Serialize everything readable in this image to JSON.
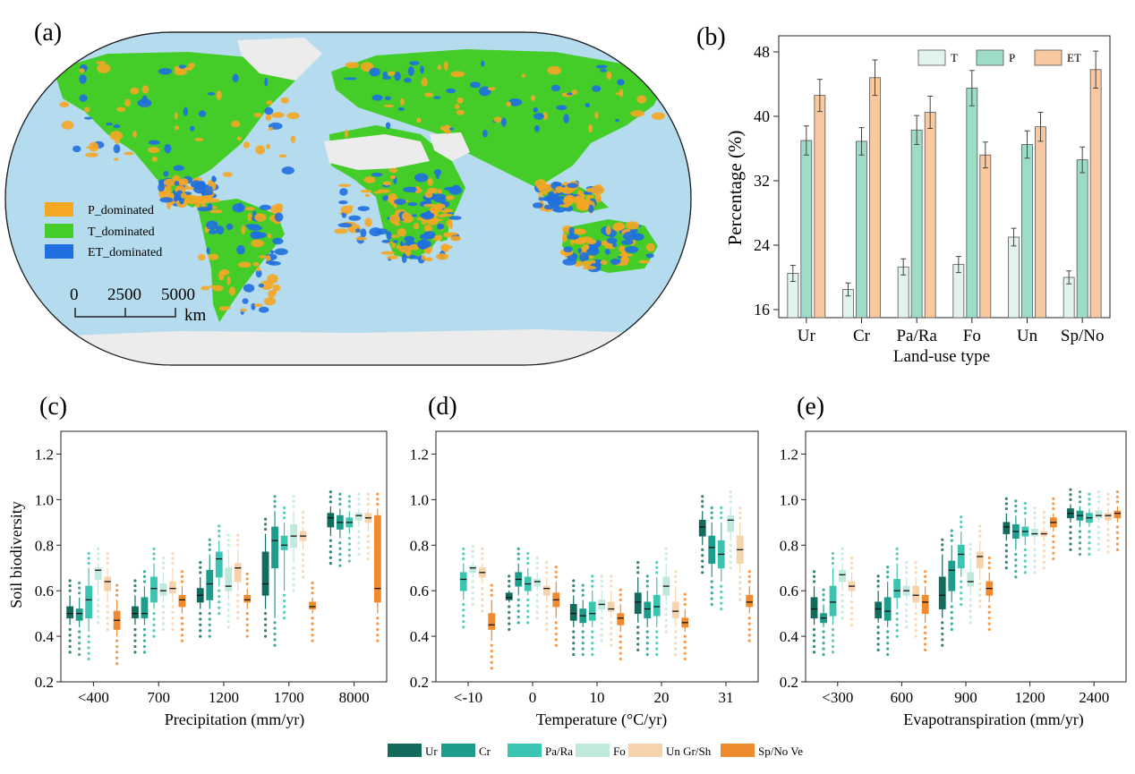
{
  "colors": {
    "p_dom": "#f5a623",
    "t_dom": "#44cc28",
    "et_dom": "#1f6fe0",
    "ocean": "#b5dcee",
    "land_gray": "#ececec",
    "bar_T": "#e2f3ee",
    "bar_P": "#9ddcc6",
    "bar_ET": "#f8c9a0",
    "groups": [
      "#136b5e",
      "#1e9c8c",
      "#3cc4b3",
      "#bfe9dd",
      "#f6d3ad",
      "#f08a2e"
    ]
  },
  "map": {
    "panel_label": "(a)",
    "legend": [
      "P_dominated",
      "T_dominated",
      "ET_dominated"
    ],
    "scale_ticks": [
      "0",
      "2500",
      "5000"
    ],
    "scale_unit": "km"
  },
  "chart_data": [
    {
      "id": "b",
      "panel_label": "(b)",
      "type": "bar",
      "xlabel": "Land-use type",
      "ylabel": "Percentage (%)",
      "ylim": [
        15,
        50
      ],
      "yticks": [
        "16",
        "24",
        "32",
        "40",
        "48"
      ],
      "categories": [
        "Ur",
        "Cr",
        "Pa/Ra",
        "Fo",
        "Un",
        "Sp/No"
      ],
      "series": [
        {
          "name": "T",
          "values": [
            20.5,
            18.5,
            21.3,
            21.6,
            25.0,
            20.0
          ],
          "errors": [
            1.0,
            0.8,
            1.0,
            1.0,
            1.1,
            0.8
          ]
        },
        {
          "name": "P",
          "values": [
            37.0,
            36.9,
            38.3,
            43.5,
            36.5,
            34.6
          ],
          "errors": [
            1.8,
            1.7,
            1.8,
            2.2,
            1.7,
            1.6
          ]
        },
        {
          "name": "ET",
          "values": [
            42.6,
            44.8,
            40.5,
            35.2,
            38.7,
            45.8
          ],
          "errors": [
            2.0,
            2.2,
            2.0,
            1.6,
            1.8,
            2.3
          ]
        }
      ],
      "legend_position": "top"
    },
    {
      "id": "c",
      "panel_label": "(c)",
      "type": "box",
      "xlabel": "Precipitation (mm/yr)",
      "ylabel": "Soil biodiversity",
      "ylim": [
        0.2,
        1.3
      ],
      "yticks": [
        "0.2",
        "0.4",
        "0.6",
        "0.8",
        "1.0",
        "1.2"
      ],
      "categories": [
        "<400",
        "700",
        "1200",
        "1700",
        "8000"
      ],
      "groups": [
        "Ur",
        "Cr",
        "Pa/Ra",
        "Fo",
        "Un Gr/Sh",
        "Sp/No Ve"
      ],
      "boxes": [
        [
          [
            0.45,
            0.48,
            0.5,
            0.53,
            0.58
          ],
          [
            0.44,
            0.47,
            0.5,
            0.52,
            0.57
          ],
          [
            0.42,
            0.48,
            0.56,
            0.62,
            0.7
          ],
          [
            0.58,
            0.65,
            0.69,
            0.7,
            0.72
          ],
          [
            0.55,
            0.6,
            0.64,
            0.66,
            0.7
          ],
          [
            0.4,
            0.43,
            0.47,
            0.51,
            0.56
          ]
        ],
        [
          [
            0.45,
            0.48,
            0.5,
            0.53,
            0.58
          ],
          [
            0.45,
            0.48,
            0.5,
            0.57,
            0.62
          ],
          [
            0.52,
            0.55,
            0.61,
            0.66,
            0.72
          ],
          [
            0.55,
            0.58,
            0.6,
            0.63,
            0.68
          ],
          [
            0.55,
            0.59,
            0.61,
            0.64,
            0.7
          ],
          [
            0.5,
            0.53,
            0.56,
            0.58,
            0.62
          ]
        ],
        [
          [
            0.52,
            0.55,
            0.58,
            0.61,
            0.66
          ],
          [
            0.52,
            0.56,
            0.63,
            0.69,
            0.76
          ],
          [
            0.62,
            0.66,
            0.74,
            0.77,
            0.82
          ],
          [
            0.56,
            0.6,
            0.62,
            0.7,
            0.78
          ],
          [
            0.6,
            0.64,
            0.7,
            0.72,
            0.78
          ],
          [
            0.52,
            0.55,
            0.56,
            0.58,
            0.61
          ]
        ],
        [
          [
            0.52,
            0.58,
            0.63,
            0.77,
            0.85
          ],
          [
            0.48,
            0.7,
            0.82,
            0.88,
            0.95
          ],
          [
            0.6,
            0.78,
            0.8,
            0.84,
            0.9
          ],
          [
            0.72,
            0.79,
            0.84,
            0.89,
            0.95
          ],
          [
            0.78,
            0.82,
            0.84,
            0.86,
            0.88
          ],
          [
            0.5,
            0.52,
            0.53,
            0.55,
            0.57
          ]
        ],
        [
          [
            0.84,
            0.88,
            0.92,
            0.94,
            0.97
          ],
          [
            0.83,
            0.87,
            0.9,
            0.93,
            0.96
          ],
          [
            0.85,
            0.88,
            0.9,
            0.92,
            0.95
          ],
          [
            0.88,
            0.91,
            0.93,
            0.94,
            0.96
          ],
          [
            0.86,
            0.9,
            0.92,
            0.94,
            0.96
          ],
          [
            0.5,
            0.55,
            0.61,
            0.93,
            0.96
          ]
        ]
      ]
    },
    {
      "id": "d",
      "panel_label": "(d)",
      "type": "box",
      "xlabel": "Temperature (°C/yr)",
      "ylabel": "",
      "ylim": [
        0.2,
        1.3
      ],
      "yticks": [
        "0.2",
        "0.4",
        "0.6",
        "0.8",
        "1.0",
        "1.2"
      ],
      "categories": [
        "<-10",
        "0",
        "10",
        "20",
        "31"
      ],
      "groups": [
        "Ur",
        "Cr",
        "Pa/Ra",
        "Fo",
        "Un Gr/Sh",
        "Sp/No Ve"
      ],
      "boxes": [
        [
          null,
          null,
          [
            0.56,
            0.6,
            0.65,
            0.68,
            0.72
          ],
          [
            0.66,
            0.68,
            0.7,
            0.71,
            0.73
          ],
          [
            0.63,
            0.66,
            0.68,
            0.7,
            0.72
          ],
          [
            0.38,
            0.43,
            0.45,
            0.5,
            0.56
          ]
        ],
        [
          [
            0.55,
            0.56,
            0.57,
            0.59,
            0.6
          ],
          [
            0.58,
            0.62,
            0.65,
            0.68,
            0.72
          ],
          [
            0.58,
            0.6,
            0.63,
            0.66,
            0.7
          ],
          [
            0.6,
            0.62,
            0.64,
            0.65,
            0.68
          ],
          [
            0.55,
            0.58,
            0.61,
            0.62,
            0.66
          ],
          [
            0.48,
            0.53,
            0.56,
            0.59,
            0.64
          ]
        ],
        [
          [
            0.44,
            0.47,
            0.5,
            0.54,
            0.58
          ],
          [
            0.44,
            0.46,
            0.49,
            0.52,
            0.56
          ],
          [
            0.44,
            0.47,
            0.5,
            0.55,
            0.6
          ],
          [
            0.5,
            0.52,
            0.54,
            0.56,
            0.6
          ],
          [
            0.48,
            0.51,
            0.52,
            0.55,
            0.6
          ],
          [
            0.42,
            0.45,
            0.48,
            0.5,
            0.54
          ]
        ],
        [
          [
            0.46,
            0.5,
            0.55,
            0.59,
            0.66
          ],
          [
            0.44,
            0.48,
            0.52,
            0.55,
            0.6
          ],
          [
            0.44,
            0.49,
            0.53,
            0.58,
            0.66
          ],
          [
            0.54,
            0.58,
            0.62,
            0.66,
            0.72
          ],
          [
            0.44,
            0.48,
            0.51,
            0.55,
            0.62
          ],
          [
            0.42,
            0.44,
            0.46,
            0.48,
            0.52
          ]
        ],
        [
          [
            0.8,
            0.84,
            0.88,
            0.91,
            0.95
          ],
          [
            0.66,
            0.72,
            0.79,
            0.84,
            0.9
          ],
          [
            0.64,
            0.7,
            0.76,
            0.82,
            0.9
          ],
          [
            0.82,
            0.86,
            0.91,
            0.93,
            0.97
          ],
          [
            0.68,
            0.72,
            0.78,
            0.84,
            0.9
          ],
          [
            0.5,
            0.53,
            0.55,
            0.58,
            0.62
          ]
        ]
      ]
    },
    {
      "id": "e",
      "panel_label": "(e)",
      "type": "box",
      "xlabel": "Evapotranspiration (mm/yr)",
      "ylabel": "",
      "ylim": [
        0.2,
        1.3
      ],
      "yticks": [
        "0.2",
        "0.4",
        "0.6",
        "0.8",
        "1.0",
        "1.2"
      ],
      "categories": [
        "<300",
        "600",
        "900",
        "1200",
        "2400"
      ],
      "groups": [
        "Ur",
        "Cr",
        "Pa/Ra",
        "Fo",
        "Un Gr/Sh",
        "Sp/No Ve"
      ],
      "boxes": [
        [
          [
            0.45,
            0.48,
            0.52,
            0.57,
            0.62
          ],
          [
            0.44,
            0.46,
            0.48,
            0.5,
            0.54
          ],
          [
            0.45,
            0.49,
            0.55,
            0.62,
            0.7
          ],
          [
            0.6,
            0.64,
            0.67,
            0.69,
            0.72
          ],
          [
            0.57,
            0.6,
            0.62,
            0.64,
            0.68
          ],
          null
        ],
        [
          [
            0.46,
            0.48,
            0.52,
            0.55,
            0.6
          ],
          [
            0.44,
            0.47,
            0.51,
            0.57,
            0.64
          ],
          [
            0.52,
            0.57,
            0.6,
            0.65,
            0.72
          ],
          [
            0.56,
            0.58,
            0.6,
            0.62,
            0.66
          ],
          [
            0.52,
            0.55,
            0.58,
            0.62,
            0.66
          ],
          [
            0.46,
            0.5,
            0.55,
            0.58,
            0.62
          ]
        ],
        [
          [
            0.48,
            0.52,
            0.58,
            0.66,
            0.76
          ],
          [
            0.55,
            0.6,
            0.69,
            0.73,
            0.8
          ],
          [
            0.66,
            0.7,
            0.76,
            0.8,
            0.86
          ],
          [
            0.58,
            0.62,
            0.64,
            0.68,
            0.74
          ],
          [
            0.65,
            0.7,
            0.75,
            0.77,
            0.82
          ],
          [
            0.55,
            0.58,
            0.61,
            0.64,
            0.68
          ]
        ],
        [
          [
            0.82,
            0.85,
            0.88,
            0.9,
            0.94
          ],
          [
            0.78,
            0.83,
            0.86,
            0.89,
            0.93
          ],
          [
            0.8,
            0.84,
            0.86,
            0.88,
            0.92
          ],
          [
            0.8,
            0.84,
            0.85,
            0.87,
            0.9
          ],
          [
            0.82,
            0.84,
            0.85,
            0.86,
            0.88
          ],
          [
            0.86,
            0.88,
            0.9,
            0.92,
            0.94
          ]
        ],
        [
          [
            0.9,
            0.92,
            0.94,
            0.96,
            0.98
          ],
          [
            0.88,
            0.91,
            0.93,
            0.95,
            0.97
          ],
          [
            0.88,
            0.9,
            0.92,
            0.94,
            0.96
          ],
          [
            0.9,
            0.92,
            0.93,
            0.95,
            0.97
          ],
          [
            0.89,
            0.91,
            0.93,
            0.94,
            0.96
          ],
          [
            0.9,
            0.92,
            0.94,
            0.95,
            0.97
          ]
        ]
      ]
    }
  ],
  "legend_bottom": [
    "Ur",
    "Cr",
    "Pa/Ra",
    "Fo",
    "Un Gr/Sh",
    "Sp/No Ve"
  ]
}
